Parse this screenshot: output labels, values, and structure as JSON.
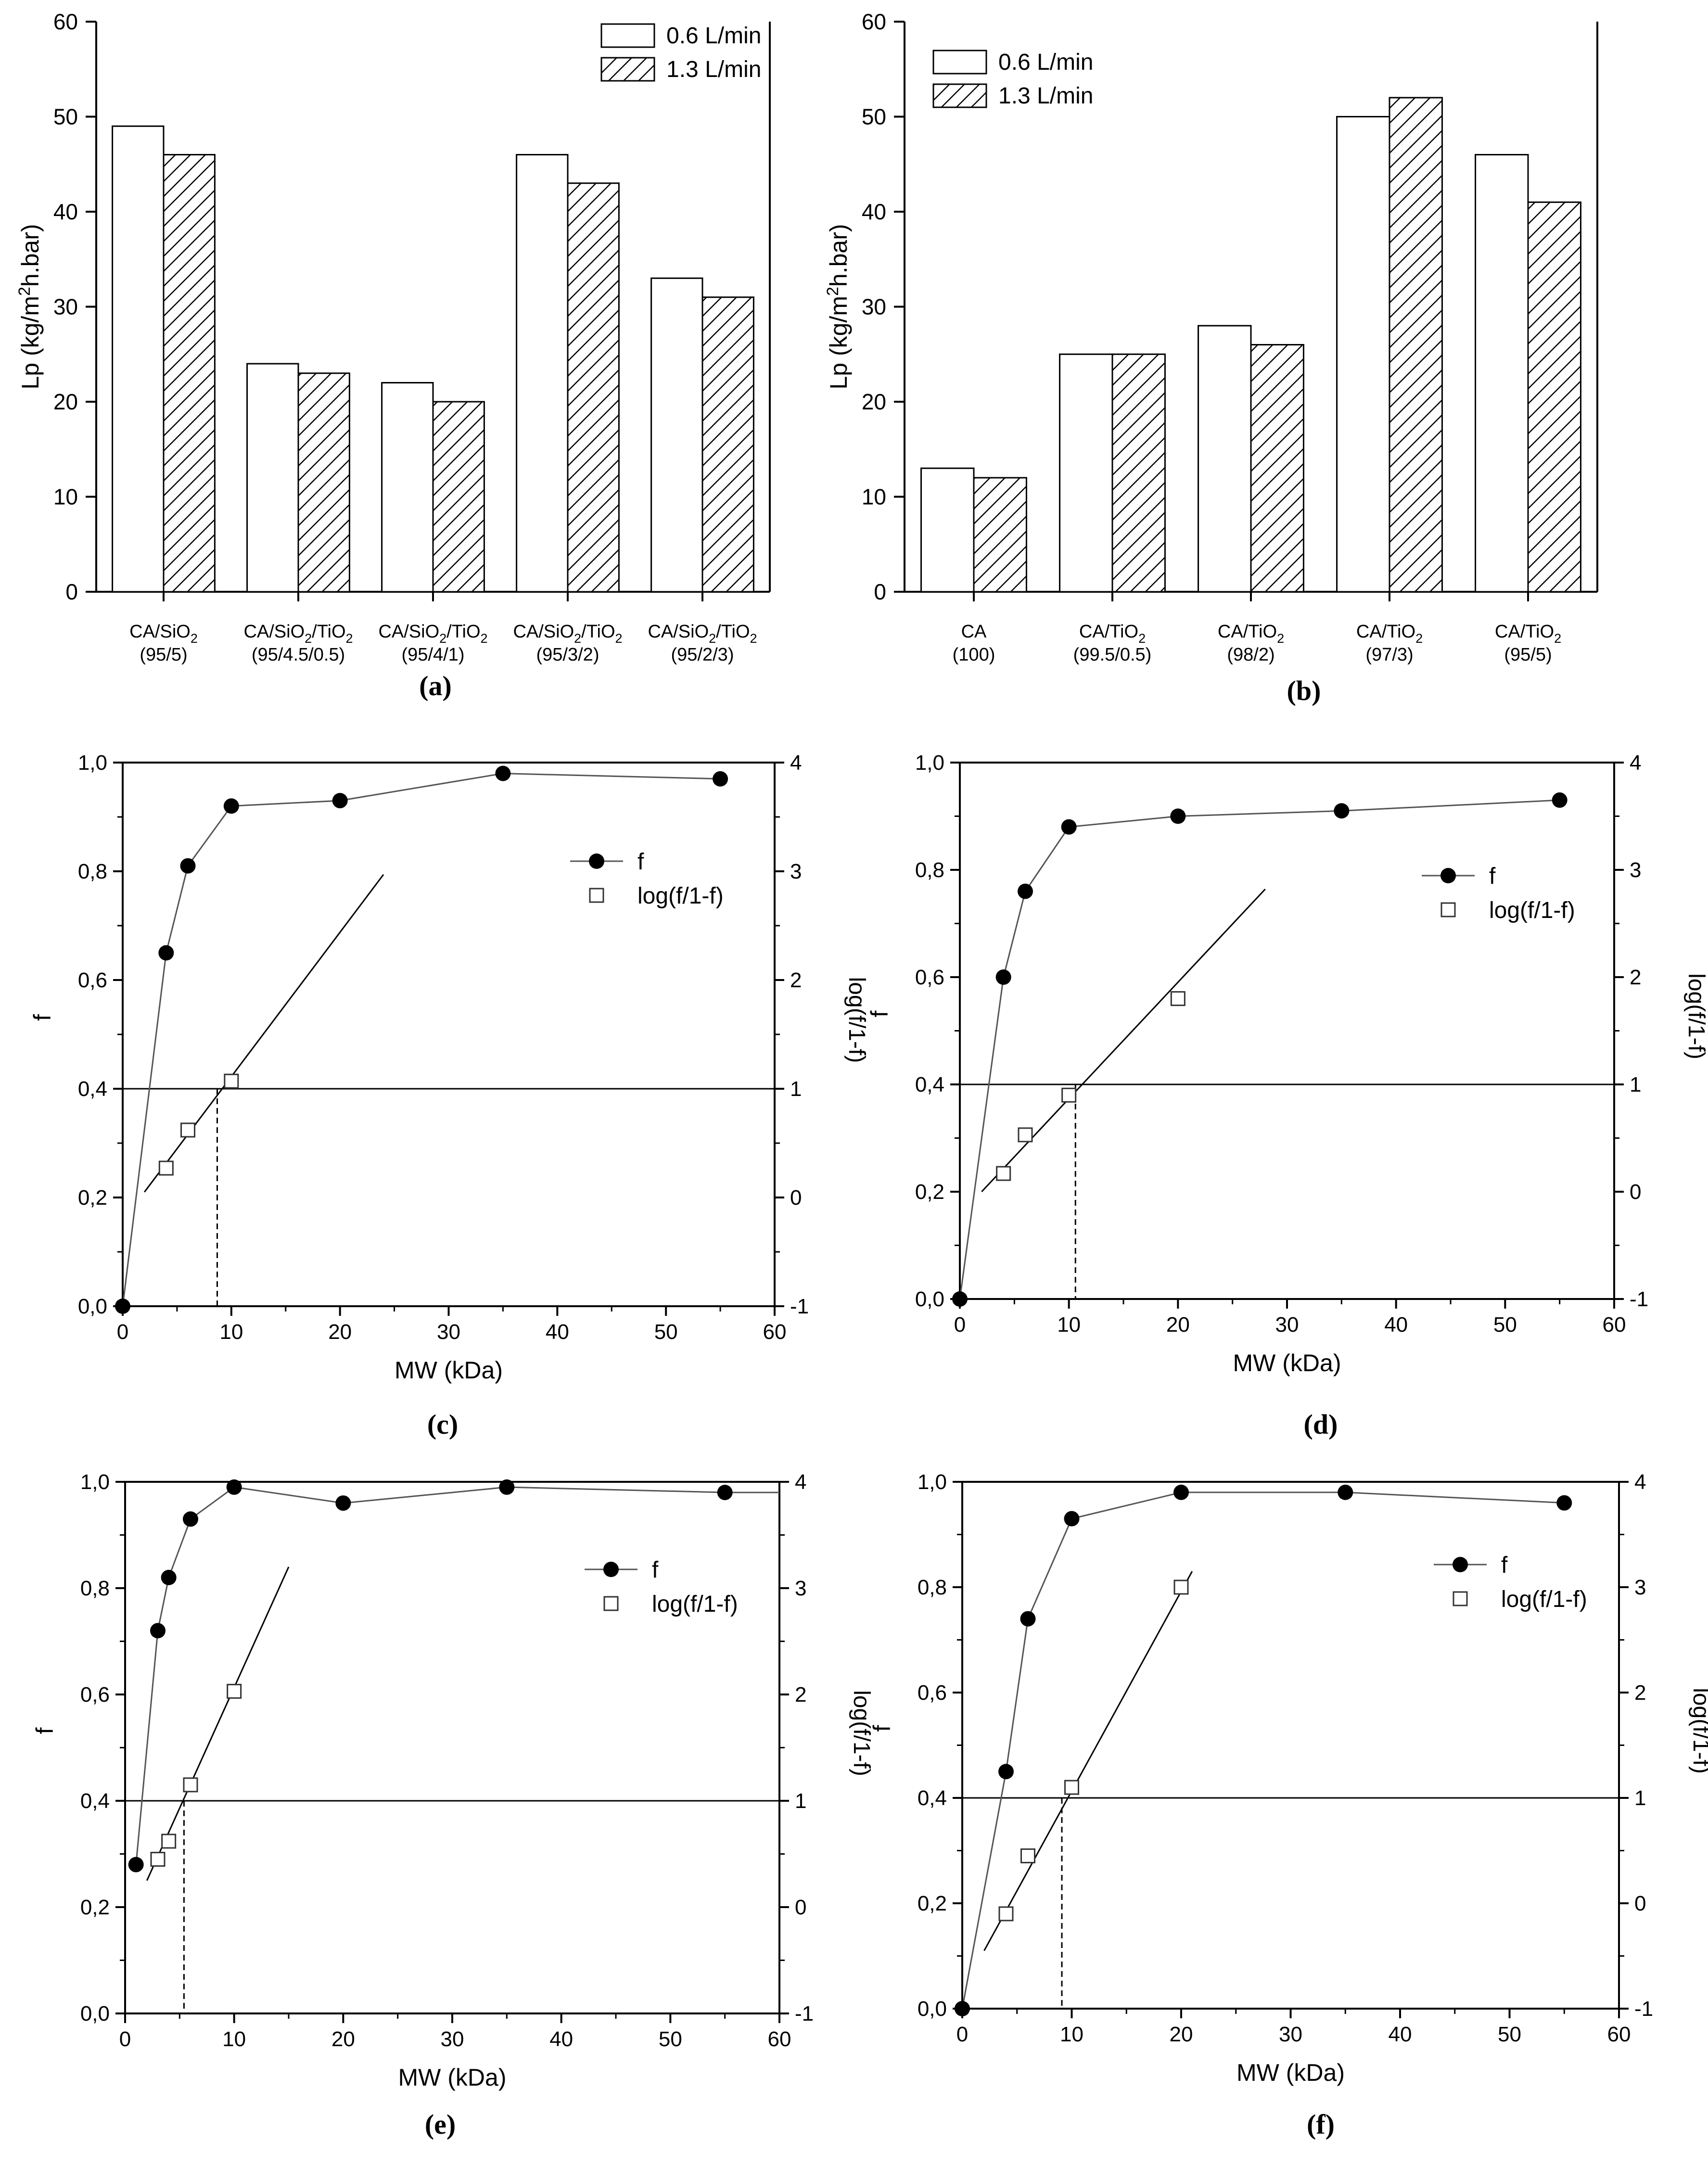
{
  "colors": {
    "axis": "#000000",
    "bar_fill": "#ffffff",
    "hatch": "#000000",
    "line": "#555555",
    "background": "#ffffff"
  },
  "chart_data": [
    {
      "panel": "(a)",
      "type": "bar",
      "ylabel": "Lp (kg/m²h.bar)",
      "xlabel": "",
      "ylim": [
        0,
        60
      ],
      "yticks": [
        "0",
        "10",
        "20",
        "30",
        "40",
        "50",
        "60"
      ],
      "categories": [
        {
          "line1": "CA/SiO₂",
          "line2": "(95/5)"
        },
        {
          "line1": "CA/SiO₂/TiO₂",
          "line2": "(95/4.5/0.5)"
        },
        {
          "line1": "CA/SiO₂/TiO₂",
          "line2": "(95/4/1)"
        },
        {
          "line1": "CA/SiO₂/TiO₂",
          "line2": "(95/3/2)"
        },
        {
          "line1": "CA/SiO₂/TiO₂",
          "line2": "(95/2/3)"
        }
      ],
      "series": [
        {
          "name": "0.6 L/min",
          "values": [
            49,
            24,
            22,
            46,
            33
          ]
        },
        {
          "name": "1.3 L/min",
          "values": [
            46,
            23,
            20,
            43,
            31
          ]
        }
      ],
      "legend": "top-right"
    },
    {
      "panel": "(b)",
      "type": "bar",
      "ylabel": "Lp (kg/m²h.bar)",
      "xlabel": "",
      "ylim": [
        0,
        60
      ],
      "yticks": [
        "0",
        "10",
        "20",
        "30",
        "40",
        "50",
        "60"
      ],
      "categories": [
        {
          "line1": "CA",
          "line2": "(100)"
        },
        {
          "line1": "CA/TiO₂",
          "line2": "(99.5/0.5)"
        },
        {
          "line1": "CA/TiO₂",
          "line2": "(98/2)"
        },
        {
          "line1": "CA/TiO₂",
          "line2": "(97/3)"
        },
        {
          "line1": "CA/TiO₂",
          "line2": "(95/5)"
        }
      ],
      "series": [
        {
          "name": "0.6 L/min",
          "values": [
            13,
            25,
            28,
            50,
            46
          ]
        },
        {
          "name": "1.3 L/min",
          "values": [
            12,
            25,
            26,
            52,
            41
          ]
        }
      ],
      "legend": "top-left"
    },
    {
      "panel": "(c)",
      "type": "scatter",
      "xlabel": "MW (kDa)",
      "ylabel": "f",
      "y2label": "log(f/1-f)",
      "xlim": [
        0,
        60
      ],
      "ylim": [
        0,
        1.0
      ],
      "y2lim": [
        -1,
        4
      ],
      "xticks": [
        "0",
        "10",
        "20",
        "30",
        "40",
        "50",
        "60"
      ],
      "yticks": [
        "0,0",
        "0,2",
        "0,4",
        "0,6",
        "0,8",
        "1,0"
      ],
      "y2ticks": [
        "-1",
        "0",
        "1",
        "2",
        "3",
        "4"
      ],
      "series": [
        {
          "name": "f",
          "axis": "left",
          "x": [
            0,
            4,
            6,
            10,
            20,
            35,
            55
          ],
          "y": [
            0.0,
            0.65,
            0.81,
            0.92,
            0.93,
            0.98,
            0.97
          ]
        },
        {
          "name": "log(f/1-f)",
          "axis": "right",
          "x": [
            4,
            6,
            10
          ],
          "y": [
            0.27,
            0.62,
            1.07
          ]
        }
      ],
      "fit_line": {
        "x": [
          2,
          24
        ],
        "y": [
          0.05,
          2.97
        ]
      },
      "reference_y2": 1,
      "mwco": 8.7,
      "legend": "top-right"
    },
    {
      "panel": "(d)",
      "type": "scatter",
      "xlabel": "MW (kDa)",
      "ylabel": "f",
      "y2label": "log(f/1-f)",
      "xlim": [
        0,
        60
      ],
      "ylim": [
        0,
        1.0
      ],
      "y2lim": [
        -1,
        4
      ],
      "xticks": [
        "0",
        "10",
        "20",
        "30",
        "40",
        "50",
        "60"
      ],
      "yticks": [
        "0,0",
        "0,2",
        "0,4",
        "0,6",
        "0,8",
        "1,0"
      ],
      "y2ticks": [
        "-1",
        "0",
        "1",
        "2",
        "3",
        "4"
      ],
      "series": [
        {
          "name": "f",
          "axis": "left",
          "x": [
            0,
            4,
            6,
            10,
            20,
            35,
            55
          ],
          "y": [
            0.0,
            0.6,
            0.76,
            0.88,
            0.9,
            0.91,
            0.93
          ]
        },
        {
          "name": "log(f/1-f)",
          "axis": "right",
          "x": [
            4,
            6,
            10,
            20
          ],
          "y": [
            0.17,
            0.53,
            0.9,
            1.8
          ]
        }
      ],
      "fit_line": {
        "x": [
          2,
          28
        ],
        "y": [
          0.0,
          2.82
        ]
      },
      "reference_y2": 1,
      "mwco": 10.6,
      "legend": "top-right"
    },
    {
      "panel": "(e)",
      "type": "scatter",
      "xlabel": "MW (kDa)",
      "ylabel": "f",
      "y2label": "log(f/1-f)",
      "xlim": [
        0,
        60
      ],
      "ylim": [
        0,
        1.0
      ],
      "y2lim": [
        -1,
        4
      ],
      "xticks": [
        "0",
        "10",
        "20",
        "30",
        "40",
        "50",
        "60"
      ],
      "yticks": [
        "0,0",
        "0,2",
        "0,4",
        "0,6",
        "0,8",
        "1,0"
      ],
      "y2ticks": [
        "-1",
        "0",
        "1",
        "2",
        "3",
        "4"
      ],
      "series": [
        {
          "name": "f",
          "axis": "left",
          "x": [
            1,
            3,
            4,
            6,
            10,
            20,
            35,
            55,
            60
          ],
          "y": [
            0.28,
            0.72,
            0.82,
            0.93,
            0.99,
            0.96,
            0.99,
            0.98,
            0.98
          ],
          "markers": [
            true,
            true,
            true,
            true,
            true,
            true,
            true,
            true,
            false
          ]
        },
        {
          "name": "log(f/1-f)",
          "axis": "right",
          "x": [
            3,
            4,
            6,
            10
          ],
          "y": [
            0.45,
            0.62,
            1.15,
            2.03
          ]
        }
      ],
      "fit_line": {
        "x": [
          2,
          15
        ],
        "y": [
          0.25,
          3.2
        ]
      },
      "reference_y2": 1,
      "mwco": 5.4,
      "legend": "top-right"
    },
    {
      "panel": "(f)",
      "type": "scatter",
      "xlabel": "MW (kDa)",
      "ylabel": "f",
      "y2label": "log(f/1-f)",
      "xlim": [
        0,
        60
      ],
      "ylim": [
        0,
        1.0
      ],
      "y2lim": [
        -1,
        4
      ],
      "xticks": [
        "0",
        "10",
        "20",
        "30",
        "40",
        "50",
        "60"
      ],
      "yticks": [
        "0,0",
        "0,2",
        "0,4",
        "0,6",
        "0,8",
        "1,0"
      ],
      "y2ticks": [
        "-1",
        "0",
        "1",
        "2",
        "3",
        "4"
      ],
      "series": [
        {
          "name": "f",
          "axis": "left",
          "x": [
            0,
            4,
            6,
            10,
            20,
            35,
            55
          ],
          "y": [
            0.0,
            0.45,
            0.74,
            0.93,
            0.98,
            0.98,
            0.96
          ]
        },
        {
          "name": "log(f/1-f)",
          "axis": "right",
          "x": [
            4,
            6,
            10,
            20
          ],
          "y": [
            -0.1,
            0.45,
            1.1,
            3.0
          ]
        }
      ],
      "fit_line": {
        "x": [
          2,
          21
        ],
        "y": [
          -0.45,
          3.15
        ]
      },
      "reference_y2": 1,
      "mwco": 9.1,
      "legend": "top-right"
    }
  ]
}
